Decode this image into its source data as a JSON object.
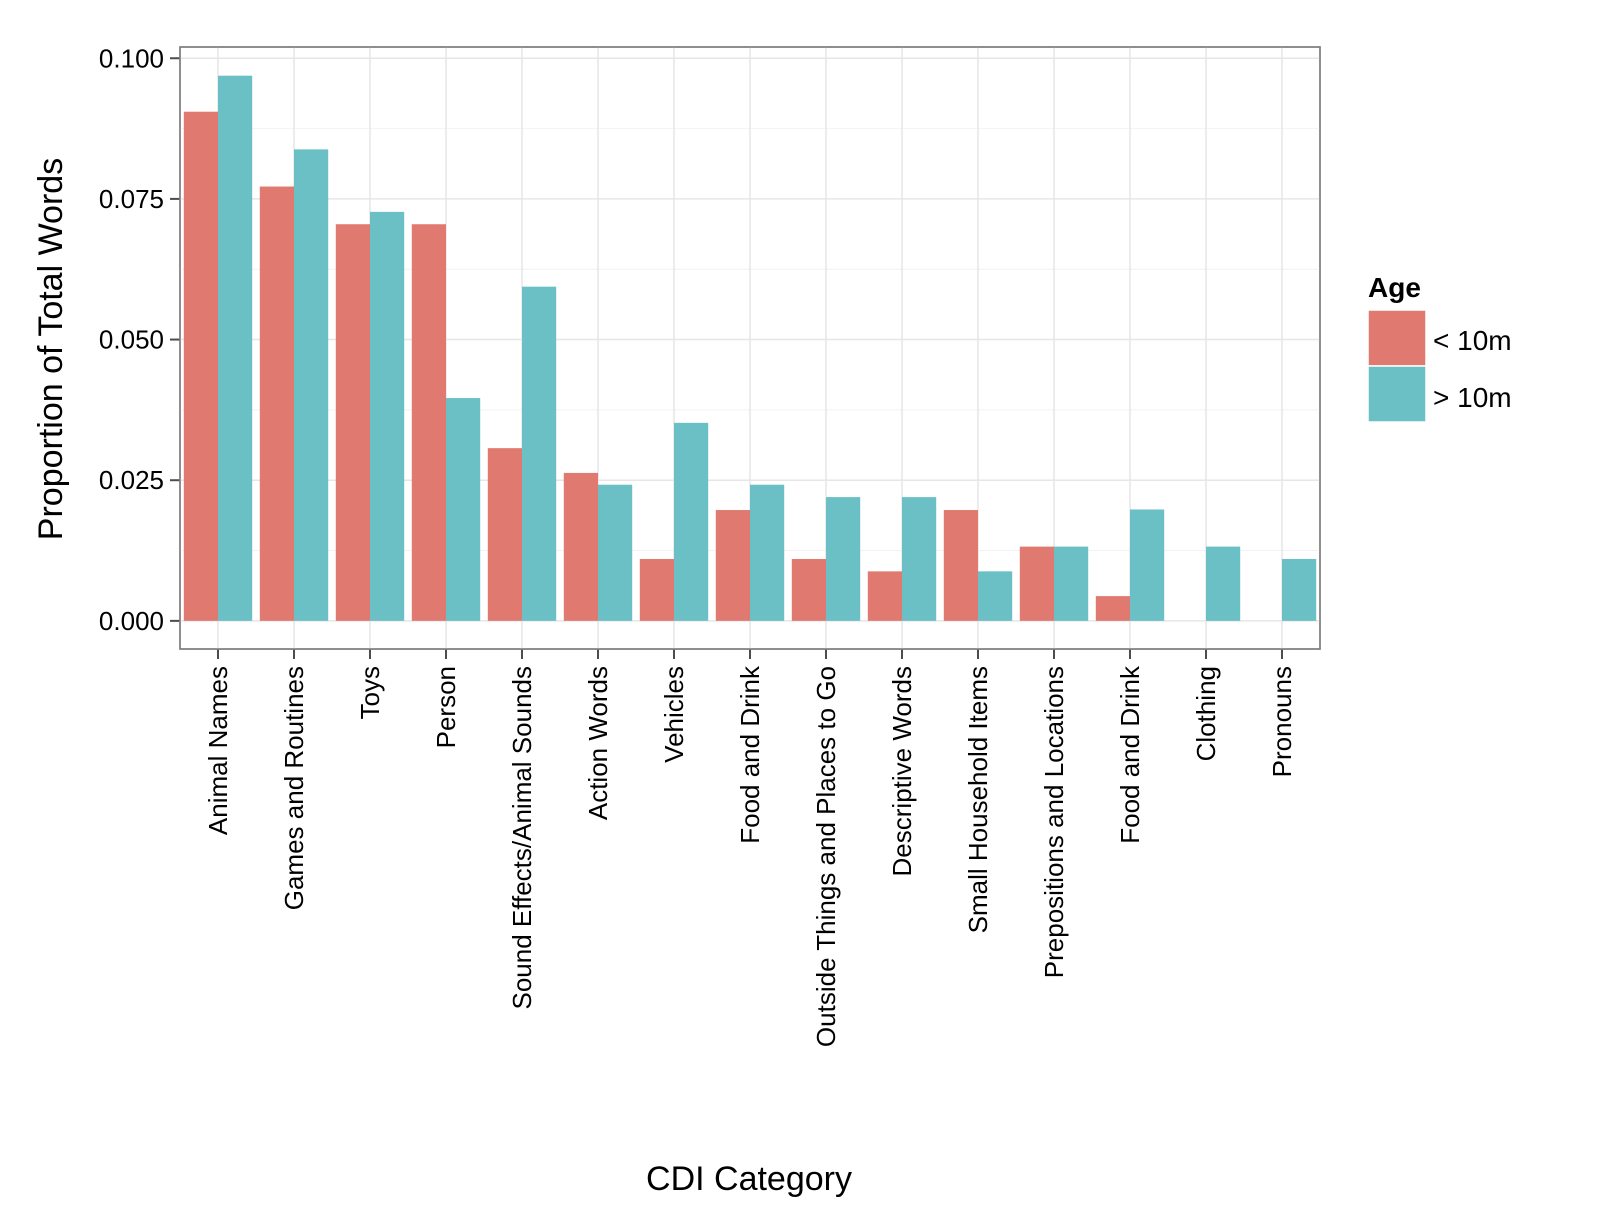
{
  "chart_data": {
    "type": "bar",
    "title": "",
    "xlabel": "CDI Category",
    "ylabel": "Proportion of Total Words",
    "ylim": [
      -0.005,
      0.102
    ],
    "yticks": [
      0.0,
      0.025,
      0.05,
      0.075,
      0.1
    ],
    "ytick_labels": [
      "0.000",
      "0.025",
      "0.050",
      "0.075",
      "0.100"
    ],
    "grid": true,
    "legend": {
      "title": "Age",
      "position": "right"
    },
    "categories": [
      "Animal Names",
      "Games and Routines",
      "Toys",
      "Person",
      "Sound Effects/Animal Sounds",
      "Action Words",
      "Vehicles",
      "Food and Drink",
      "Outside Things and Places to Go",
      "Descriptive Words",
      "Small Household Items",
      "Prepositions and Locations",
      "Food and Drink",
      "Clothing",
      "Pronouns"
    ],
    "series": [
      {
        "name": "< 10m",
        "color": "#E07A70",
        "values": [
          0.0905,
          0.0772,
          0.0705,
          0.0705,
          0.0307,
          0.0263,
          0.011,
          0.0197,
          0.011,
          0.0088,
          0.0197,
          0.0132,
          0.0044,
          null,
          null
        ]
      },
      {
        "name": "> 10m",
        "color": "#6BC0C5",
        "values": [
          0.0969,
          0.0838,
          0.0727,
          0.0396,
          0.0594,
          0.0242,
          0.0352,
          0.0242,
          0.022,
          0.022,
          0.0088,
          0.0132,
          0.0198,
          0.0132,
          0.011
        ]
      }
    ]
  }
}
